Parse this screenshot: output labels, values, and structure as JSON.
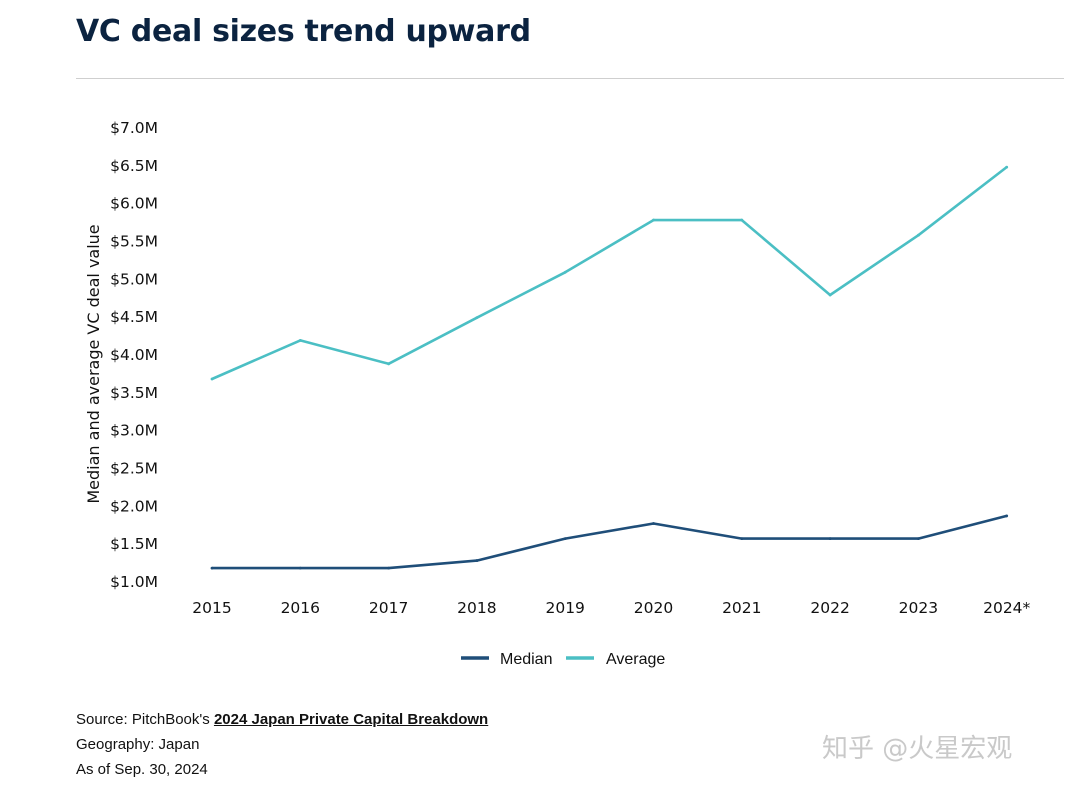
{
  "title": "VC deal sizes trend upward",
  "chart_data": {
    "type": "line",
    "ylabel": "Median and average VC deal value",
    "xlabel": "",
    "categories": [
      "2015",
      "2016",
      "2017",
      "2018",
      "2019",
      "2020",
      "2021",
      "2022",
      "2023",
      "2024*"
    ],
    "ylim": [
      1.0,
      7.0
    ],
    "ytick_values": [
      1.0,
      1.5,
      2.0,
      2.5,
      3.0,
      3.5,
      4.0,
      4.5,
      5.0,
      5.5,
      6.0,
      6.5,
      7.0
    ],
    "ytick_labels": [
      "$1.0M",
      "$1.5M",
      "$2.0M",
      "$2.5M",
      "$3.0M",
      "$3.5M",
      "$4.0M",
      "$4.5M",
      "$5.0M",
      "$5.5M",
      "$6.0M",
      "$6.5M",
      "$7.0M"
    ],
    "grid": false,
    "legend_position": "bottom-center",
    "series": [
      {
        "name": "Median",
        "color": "#1f4e79",
        "values": [
          1.17,
          1.17,
          1.17,
          1.27,
          1.56,
          1.76,
          1.56,
          1.56,
          1.56,
          1.86
        ]
      },
      {
        "name": "Average",
        "color": "#4bbfc4",
        "values": [
          3.67,
          4.18,
          3.87,
          4.48,
          5.08,
          5.77,
          5.77,
          4.78,
          5.57,
          6.47
        ]
      }
    ]
  },
  "footer": {
    "source_prefix": "Source: PitchBook's ",
    "source_link": "2024 Japan Private Capital Breakdown",
    "geography": "Geography: Japan",
    "as_of": "As of Sep. 30, 2024"
  },
  "watermark": "知乎 @火星宏观"
}
